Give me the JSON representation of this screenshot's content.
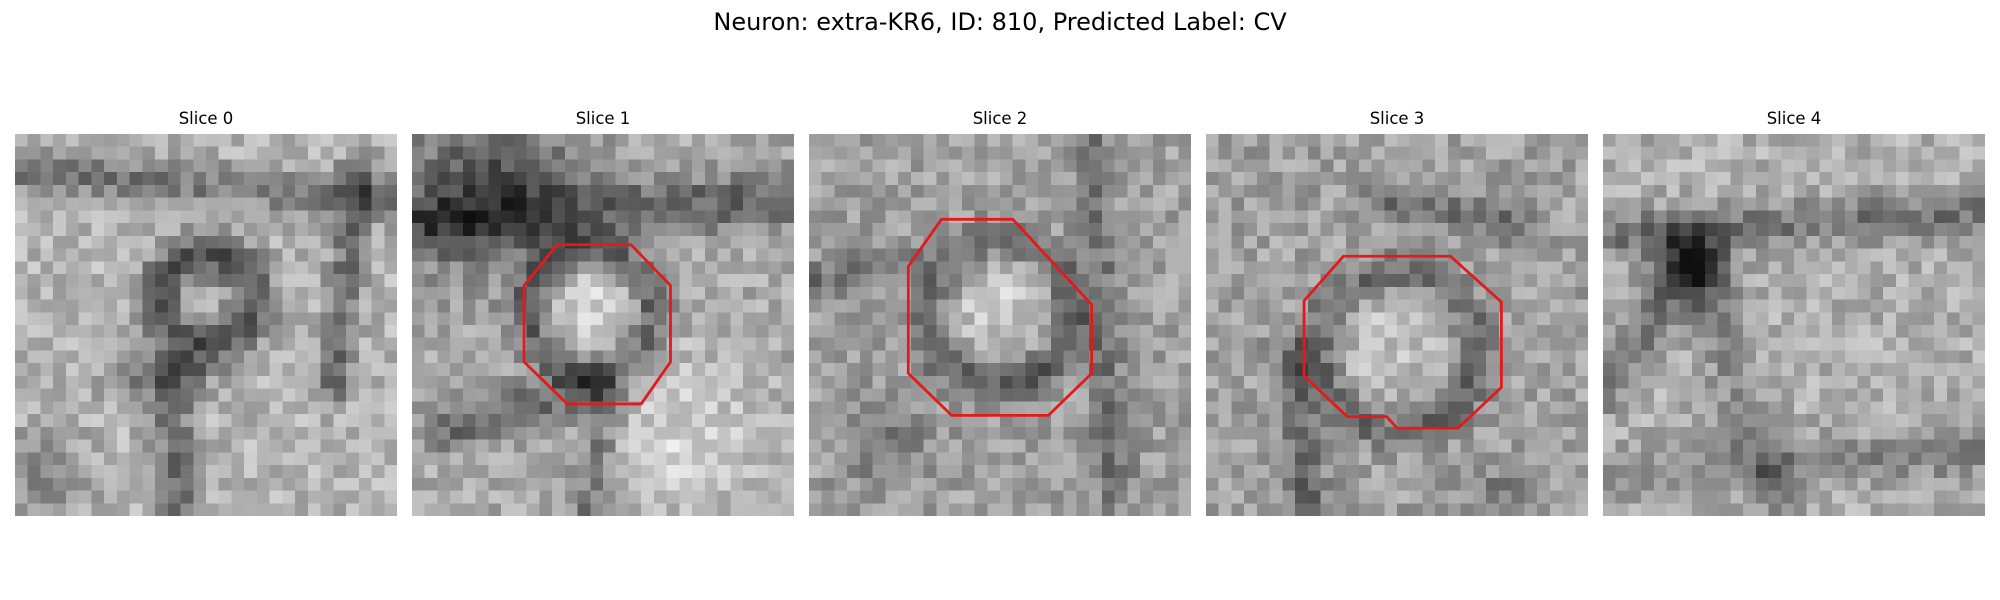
{
  "figure": {
    "title": "Neuron: extra-KR6, ID: 810, Predicted Label: CV",
    "contour_color": "#e31a1c"
  },
  "panels": [
    {
      "title": "Slice 0",
      "has_contour": false
    },
    {
      "title": "Slice 1",
      "has_contour": true
    },
    {
      "title": "Slice 2",
      "has_contour": true
    },
    {
      "title": "Slice 3",
      "has_contour": true
    },
    {
      "title": "Slice 4",
      "has_contour": false
    }
  ]
}
